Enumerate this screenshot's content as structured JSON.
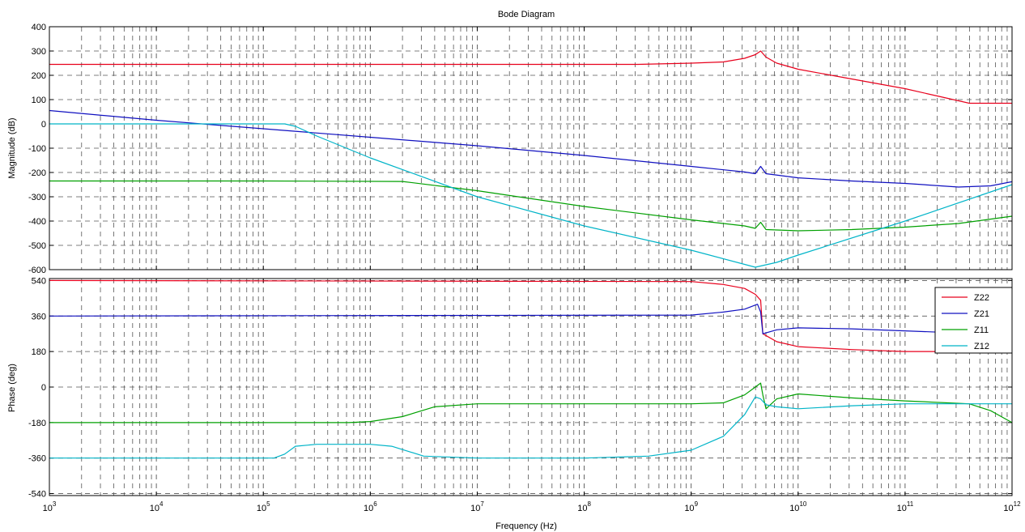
{
  "chart_data": {
    "type": "line",
    "title": "Bode Diagram",
    "xlabel": "Frequency  (Hz)",
    "xscale": "log",
    "xlim": [
      1000,
      1000000000000
    ],
    "x_ticks": [
      {
        "base": "10",
        "exp": "3"
      },
      {
        "base": "10",
        "exp": "4"
      },
      {
        "base": "10",
        "exp": "5"
      },
      {
        "base": "10",
        "exp": "6"
      },
      {
        "base": "10",
        "exp": "7"
      },
      {
        "base": "10",
        "exp": "8"
      },
      {
        "base": "10",
        "exp": "9"
      },
      {
        "base": "10",
        "exp": "10"
      },
      {
        "base": "10",
        "exp": "11"
      },
      {
        "base": "10",
        "exp": "12"
      }
    ],
    "grid": true,
    "legend_position": "top-right",
    "panels": [
      {
        "id": "magnitude",
        "ylabel": "Magnitude (dB)",
        "ylim": [
          -600,
          400
        ],
        "yticks": [
          "400",
          "300",
          "200",
          "100",
          "0",
          "-100",
          "-200",
          "-300",
          "-400",
          "-500",
          "-600"
        ],
        "series": [
          {
            "name": "Z22",
            "color": "#e8001c",
            "points": [
              [
                3,
                245
              ],
              [
                8.5,
                245
              ],
              [
                9,
                250
              ],
              [
                9.3,
                255
              ],
              [
                9.5,
                270
              ],
              [
                9.6,
                285
              ],
              [
                9.65,
                300
              ],
              [
                9.7,
                275
              ],
              [
                9.8,
                250
              ],
              [
                10,
                225
              ],
              [
                10.5,
                185
              ],
              [
                11,
                145
              ],
              [
                11.3,
                115
              ],
              [
                11.6,
                85
              ],
              [
                12,
                85
              ]
            ]
          },
          {
            "name": "Z21",
            "color": "#1010c0",
            "points": [
              [
                3,
                55
              ],
              [
                4,
                15
              ],
              [
                5,
                -20
              ],
              [
                6,
                -55
              ],
              [
                7,
                -90
              ],
              [
                8,
                -130
              ],
              [
                9,
                -175
              ],
              [
                9.5,
                -198
              ],
              [
                9.6,
                -205
              ],
              [
                9.65,
                -175
              ],
              [
                9.7,
                -205
              ],
              [
                10,
                -222
              ],
              [
                10.5,
                -235
              ],
              [
                11,
                -245
              ],
              [
                11.5,
                -260
              ],
              [
                11.8,
                -255
              ],
              [
                12,
                -238
              ]
            ]
          },
          {
            "name": "Z11",
            "color": "#00a000",
            "points": [
              [
                3,
                -235
              ],
              [
                5,
                -235
              ],
              [
                6.3,
                -237
              ],
              [
                7,
                -275
              ],
              [
                8,
                -340
              ],
              [
                9,
                -395
              ],
              [
                9.5,
                -420
              ],
              [
                9.6,
                -430
              ],
              [
                9.65,
                -405
              ],
              [
                9.7,
                -435
              ],
              [
                10,
                -440
              ],
              [
                10.5,
                -435
              ],
              [
                11,
                -425
              ],
              [
                11.5,
                -410
              ],
              [
                12,
                -380
              ]
            ]
          },
          {
            "name": "Z12",
            "color": "#00b4c8",
            "points": [
              [
                3,
                0
              ],
              [
                5.2,
                0
              ],
              [
                5.3,
                -10
              ],
              [
                5.5,
                -50
              ],
              [
                6,
                -140
              ],
              [
                7,
                -300
              ],
              [
                8,
                -420
              ],
              [
                9,
                -520
              ],
              [
                9.6,
                -590
              ],
              [
                9.8,
                -570
              ],
              [
                10,
                -540
              ],
              [
                11,
                -400
              ],
              [
                12,
                -250
              ]
            ]
          }
        ]
      },
      {
        "id": "phase",
        "ylabel": "Phase (deg)",
        "ylim": [
          -550,
          550
        ],
        "yticks": [
          "540",
          "360",
          "180",
          "0",
          "-180",
          "-360",
          "-540"
        ],
        "series": [
          {
            "name": "Z22",
            "color": "#e8001c",
            "points": [
              [
                3,
                540
              ],
              [
                9,
                535
              ],
              [
                9.3,
                520
              ],
              [
                9.5,
                500
              ],
              [
                9.6,
                470
              ],
              [
                9.65,
                440
              ],
              [
                9.67,
                270
              ],
              [
                9.8,
                230
              ],
              [
                10,
                205
              ],
              [
                10.5,
                190
              ],
              [
                11,
                180
              ],
              [
                11.8,
                180
              ],
              [
                12,
                195
              ]
            ]
          },
          {
            "name": "Z21",
            "color": "#1010c0",
            "points": [
              [
                3,
                360
              ],
              [
                9,
                365
              ],
              [
                9.3,
                380
              ],
              [
                9.5,
                395
              ],
              [
                9.62,
                420
              ],
              [
                9.65,
                380
              ],
              [
                9.67,
                270
              ],
              [
                9.8,
                290
              ],
              [
                10,
                300
              ],
              [
                10.5,
                295
              ],
              [
                11,
                285
              ],
              [
                11.7,
                270
              ],
              [
                12,
                268
              ]
            ]
          },
          {
            "name": "Z11",
            "color": "#00a000",
            "points": [
              [
                3,
                -180
              ],
              [
                5.8,
                -180
              ],
              [
                6,
                -175
              ],
              [
                6.3,
                -150
              ],
              [
                6.6,
                -100
              ],
              [
                7,
                -85
              ],
              [
                8,
                -85
              ],
              [
                9,
                -85
              ],
              [
                9.3,
                -80
              ],
              [
                9.5,
                -40
              ],
              [
                9.6,
                0
              ],
              [
                9.65,
                20
              ],
              [
                9.67,
                -40
              ],
              [
                9.7,
                -110
              ],
              [
                9.8,
                -60
              ],
              [
                10,
                -35
              ],
              [
                10.5,
                -55
              ],
              [
                11,
                -70
              ],
              [
                11.6,
                -85
              ],
              [
                11.8,
                -120
              ],
              [
                12,
                -180
              ]
            ]
          },
          {
            "name": "Z12",
            "color": "#00b4c8",
            "points": [
              [
                3,
                -360
              ],
              [
                5.1,
                -360
              ],
              [
                5.2,
                -340
              ],
              [
                5.3,
                -300
              ],
              [
                5.5,
                -290
              ],
              [
                6,
                -290
              ],
              [
                6.2,
                -300
              ],
              [
                6.5,
                -350
              ],
              [
                7,
                -360
              ],
              [
                8,
                -360
              ],
              [
                8.6,
                -350
              ],
              [
                9,
                -320
              ],
              [
                9.3,
                -250
              ],
              [
                9.5,
                -140
              ],
              [
                9.6,
                -50
              ],
              [
                9.65,
                -60
              ],
              [
                9.7,
                -90
              ],
              [
                9.8,
                -100
              ],
              [
                10,
                -110
              ],
              [
                10.5,
                -95
              ],
              [
                11,
                -85
              ],
              [
                12,
                -85
              ]
            ]
          }
        ]
      }
    ],
    "legend": [
      "Z22",
      "Z21",
      "Z11",
      "Z12"
    ]
  }
}
